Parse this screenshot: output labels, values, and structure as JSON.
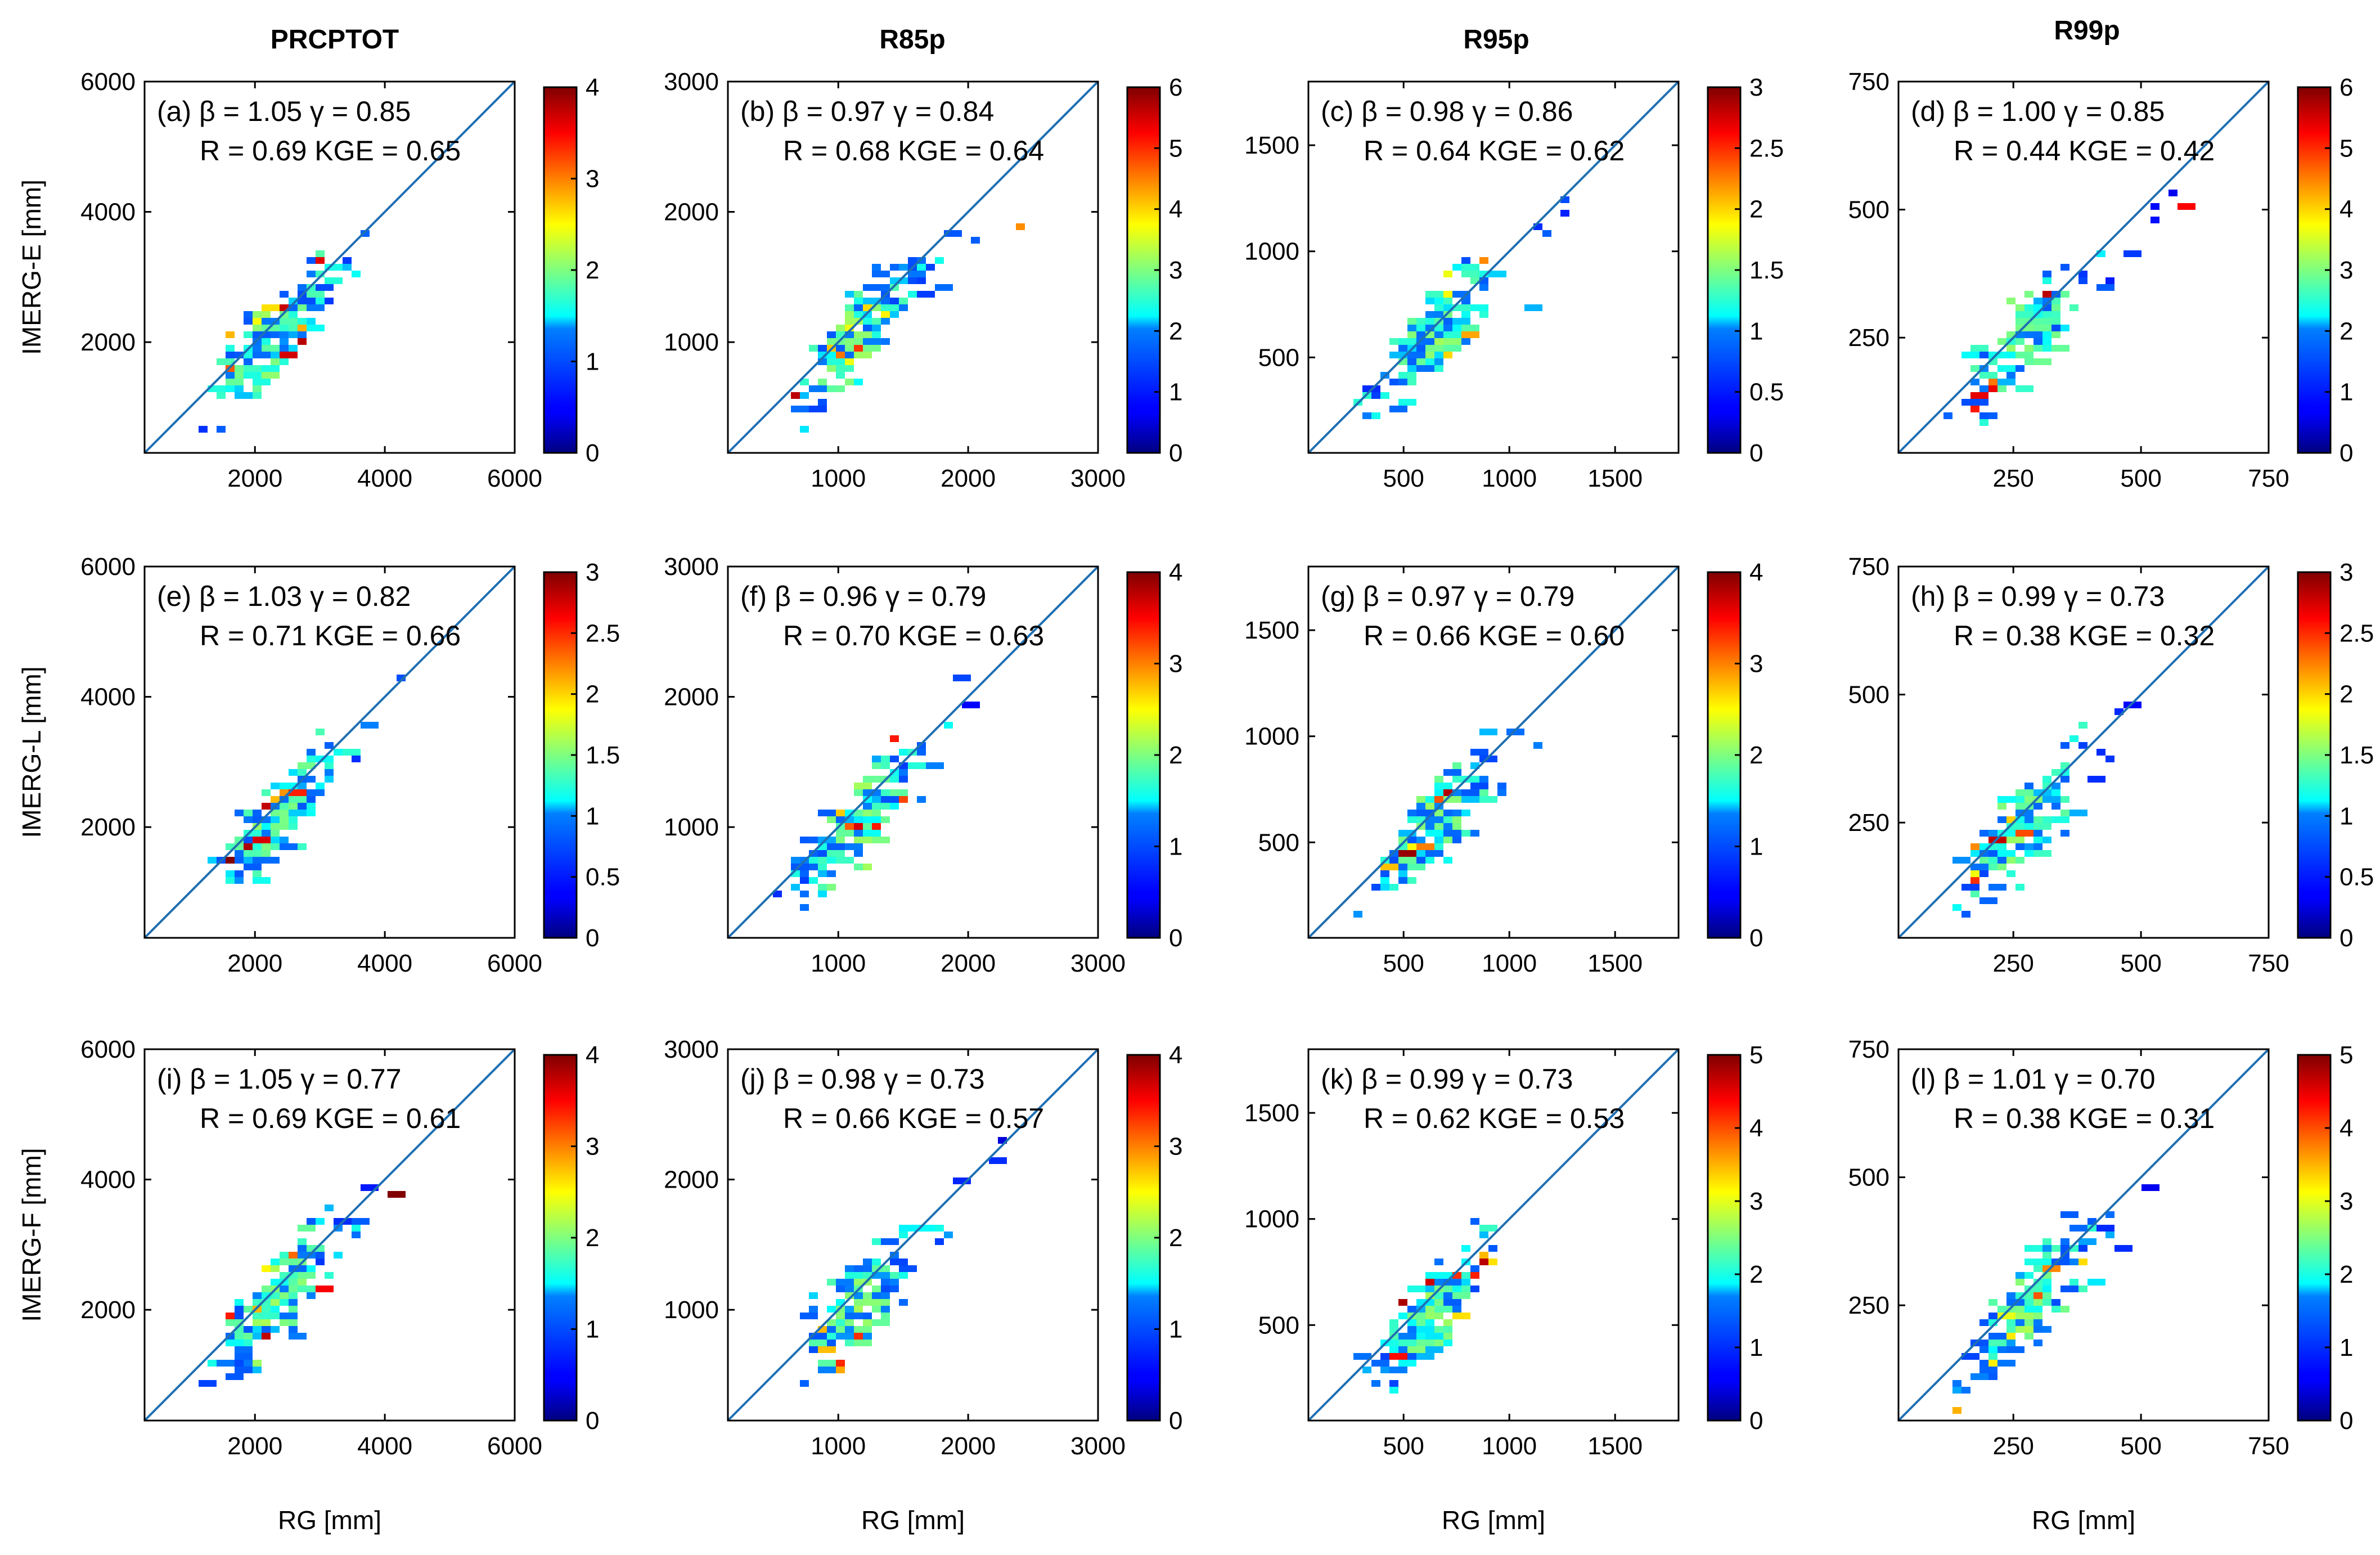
{
  "column_titles": [
    "PRCPTOT",
    "R85p",
    "R95p",
    "R99p"
  ],
  "row_labels": [
    "IMERG-E [mm]",
    "IMERG-L [mm]",
    "IMERG-F [mm]"
  ],
  "xlabel": "RG [mm]",
  "colors": {
    "diagonal": "#1f6fb2",
    "axis": "#000000",
    "colormap": "jet"
  },
  "chart_data": [
    {
      "type": "heatmap",
      "id": "a",
      "panel_label": "(a)",
      "beta": "1.05",
      "gamma": "0.85",
      "R": "0.69",
      "KGE": "0.65",
      "xlim": [
        300,
        6000
      ],
      "ylim": [
        300,
        6000
      ],
      "xticks": [
        2000,
        4000,
        6000
      ],
      "yticks": [
        2000,
        4000,
        6000
      ],
      "cbar_max": 4,
      "cbar_ticks": [
        "0",
        "1",
        "2",
        "3",
        "4"
      ],
      "ylabel": "IMERG-E [mm]",
      "xlabel": ""
    },
    {
      "type": "heatmap",
      "id": "b",
      "panel_label": "(b)",
      "beta": "0.97",
      "gamma": "0.84",
      "R": "0.68",
      "KGE": "0.64",
      "xlim": [
        150,
        3000
      ],
      "ylim": [
        150,
        3000
      ],
      "xticks": [
        1000,
        2000,
        3000
      ],
      "yticks": [
        1000,
        2000,
        3000
      ],
      "cbar_max": 6,
      "cbar_ticks": [
        "0",
        "1",
        "2",
        "3",
        "4",
        "5",
        "6"
      ],
      "ylabel": "",
      "xlabel": ""
    },
    {
      "type": "heatmap",
      "id": "c",
      "panel_label": "(c)",
      "beta": "0.98",
      "gamma": "0.86",
      "R": "0.64",
      "KGE": "0.62",
      "xlim": [
        50,
        1800
      ],
      "ylim": [
        50,
        1800
      ],
      "xticks": [
        500,
        1000,
        1500
      ],
      "yticks": [
        500,
        1000,
        1500
      ],
      "cbar_max": 3,
      "cbar_ticks": [
        "0",
        "0.5",
        "1",
        "1.5",
        "2",
        "2.5",
        "3"
      ],
      "ylabel": "",
      "xlabel": ""
    },
    {
      "type": "heatmap",
      "id": "d",
      "panel_label": "(d)",
      "beta": "1.00",
      "gamma": "0.85",
      "R": "0.44",
      "KGE": "0.42",
      "xlim": [
        25,
        750
      ],
      "ylim": [
        25,
        750
      ],
      "xticks": [
        250,
        500,
        750
      ],
      "yticks": [
        250,
        500,
        750
      ],
      "cbar_max": 6,
      "cbar_ticks": [
        "0",
        "1",
        "2",
        "3",
        "4",
        "5",
        "6"
      ],
      "ylabel": "",
      "xlabel": ""
    },
    {
      "type": "heatmap",
      "id": "e",
      "panel_label": "(e)",
      "beta": "1.03",
      "gamma": "0.82",
      "R": "0.71",
      "KGE": "0.66",
      "xlim": [
        300,
        6000
      ],
      "ylim": [
        300,
        6000
      ],
      "xticks": [
        2000,
        4000,
        6000
      ],
      "yticks": [
        2000,
        4000,
        6000
      ],
      "cbar_max": 3,
      "cbar_ticks": [
        "0",
        "0.5",
        "1",
        "1.5",
        "2",
        "2.5",
        "3"
      ],
      "ylabel": "IMERG-L [mm]",
      "xlabel": ""
    },
    {
      "type": "heatmap",
      "id": "f",
      "panel_label": "(f)",
      "beta": "0.96",
      "gamma": "0.79",
      "R": "0.70",
      "KGE": "0.63",
      "xlim": [
        150,
        3000
      ],
      "ylim": [
        150,
        3000
      ],
      "xticks": [
        1000,
        2000,
        3000
      ],
      "yticks": [
        1000,
        2000,
        3000
      ],
      "cbar_max": 4,
      "cbar_ticks": [
        "0",
        "1",
        "2",
        "3",
        "4"
      ],
      "ylabel": "",
      "xlabel": ""
    },
    {
      "type": "heatmap",
      "id": "g",
      "panel_label": "(g)",
      "beta": "0.97",
      "gamma": "0.79",
      "R": "0.66",
      "KGE": "0.60",
      "xlim": [
        50,
        1800
      ],
      "ylim": [
        50,
        1800
      ],
      "xticks": [
        500,
        1000,
        1500
      ],
      "yticks": [
        500,
        1000,
        1500
      ],
      "cbar_max": 4,
      "cbar_ticks": [
        "0",
        "1",
        "2",
        "3",
        "4"
      ],
      "ylabel": "",
      "xlabel": ""
    },
    {
      "type": "heatmap",
      "id": "h",
      "panel_label": "(h)",
      "beta": "0.99",
      "gamma": "0.73",
      "R": "0.38",
      "KGE": "0.32",
      "xlim": [
        25,
        750
      ],
      "ylim": [
        25,
        750
      ],
      "xticks": [
        250,
        500,
        750
      ],
      "yticks": [
        250,
        500,
        750
      ],
      "cbar_max": 3,
      "cbar_ticks": [
        "0",
        "0.5",
        "1",
        "1.5",
        "2",
        "2.5",
        "3"
      ],
      "ylabel": "",
      "xlabel": ""
    },
    {
      "type": "heatmap",
      "id": "i",
      "panel_label": "(i)",
      "beta": "1.05",
      "gamma": "0.77",
      "R": "0.69",
      "KGE": "0.61",
      "xlim": [
        300,
        6000
      ],
      "ylim": [
        300,
        6000
      ],
      "xticks": [
        2000,
        4000,
        6000
      ],
      "yticks": [
        2000,
        4000,
        6000
      ],
      "cbar_max": 4,
      "cbar_ticks": [
        "0",
        "1",
        "2",
        "3",
        "4"
      ],
      "ylabel": "IMERG-F [mm]",
      "xlabel": "RG [mm]"
    },
    {
      "type": "heatmap",
      "id": "j",
      "panel_label": "(j)",
      "beta": "0.98",
      "gamma": "0.73",
      "R": "0.66",
      "KGE": "0.57",
      "xlim": [
        150,
        3000
      ],
      "ylim": [
        150,
        3000
      ],
      "xticks": [
        1000,
        2000,
        3000
      ],
      "yticks": [
        1000,
        2000,
        3000
      ],
      "cbar_max": 4,
      "cbar_ticks": [
        "0",
        "1",
        "2",
        "3",
        "4"
      ],
      "ylabel": "",
      "xlabel": "RG [mm]"
    },
    {
      "type": "heatmap",
      "id": "k",
      "panel_label": "(k)",
      "beta": "0.99",
      "gamma": "0.73",
      "R": "0.62",
      "KGE": "0.53",
      "xlim": [
        50,
        1800
      ],
      "ylim": [
        50,
        1800
      ],
      "xticks": [
        500,
        1000,
        1500
      ],
      "yticks": [
        500,
        1000,
        1500
      ],
      "cbar_max": 5,
      "cbar_ticks": [
        "0",
        "1",
        "2",
        "3",
        "4",
        "5"
      ],
      "ylabel": "",
      "xlabel": "RG [mm]"
    },
    {
      "type": "heatmap",
      "id": "l",
      "panel_label": "(l)",
      "beta": "1.01",
      "gamma": "0.70",
      "R": "0.38",
      "KGE": "0.31",
      "xlim": [
        25,
        750
      ],
      "ylim": [
        25,
        750
      ],
      "xticks": [
        250,
        500,
        750
      ],
      "yticks": [
        250,
        500,
        750
      ],
      "cbar_max": 5,
      "cbar_ticks": [
        "0",
        "1",
        "2",
        "3",
        "4",
        "5"
      ],
      "ylabel": "",
      "xlabel": "RG [mm]"
    }
  ]
}
